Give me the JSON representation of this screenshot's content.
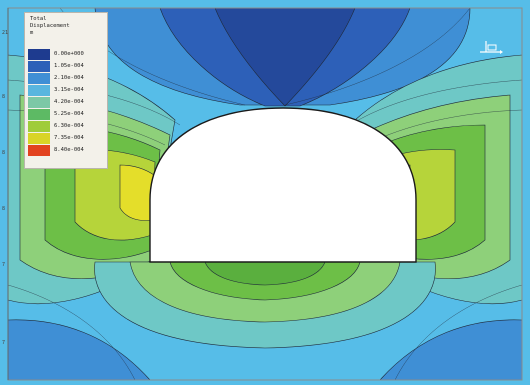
{
  "legend": {
    "title_line1": "Total",
    "title_line2": "Displacement",
    "unit": "m",
    "entries": [
      {
        "label": "0.00e+000",
        "color": "#1e3b8f"
      },
      {
        "label": "1.05e-004",
        "color": "#2d60b8"
      },
      {
        "label": "2.10e-004",
        "color": "#3f8fd5"
      },
      {
        "label": "3.15e-004",
        "color": "#59b6df"
      },
      {
        "label": "4.20e-004",
        "color": "#7cc8a6"
      },
      {
        "label": "5.25e-004",
        "color": "#5dba64"
      },
      {
        "label": "6.30e-004",
        "color": "#9fcc3a"
      },
      {
        "label": "7.35e-004",
        "color": "#d9d427"
      },
      {
        "label": "8.40e-004",
        "color": "#e2421f"
      }
    ]
  },
  "colors": {
    "background": "#56bde8",
    "band_light_blue": "#4fb0e4",
    "band_mid_blue": "#3386cf",
    "band_deep_blue": "#24499b",
    "band_teal": "#6ec8c6",
    "band_green_light": "#8ed07a",
    "band_green": "#6dbf47",
    "band_yellow_green": "#b6d43a",
    "band_yellow": "#e4de2a",
    "excavation": "#ffffff"
  },
  "icons": {
    "axes": "coordinate-axes-icon"
  },
  "ruler_ticks": [
    "21",
    "8",
    "8",
    "8",
    "7",
    "7"
  ]
}
